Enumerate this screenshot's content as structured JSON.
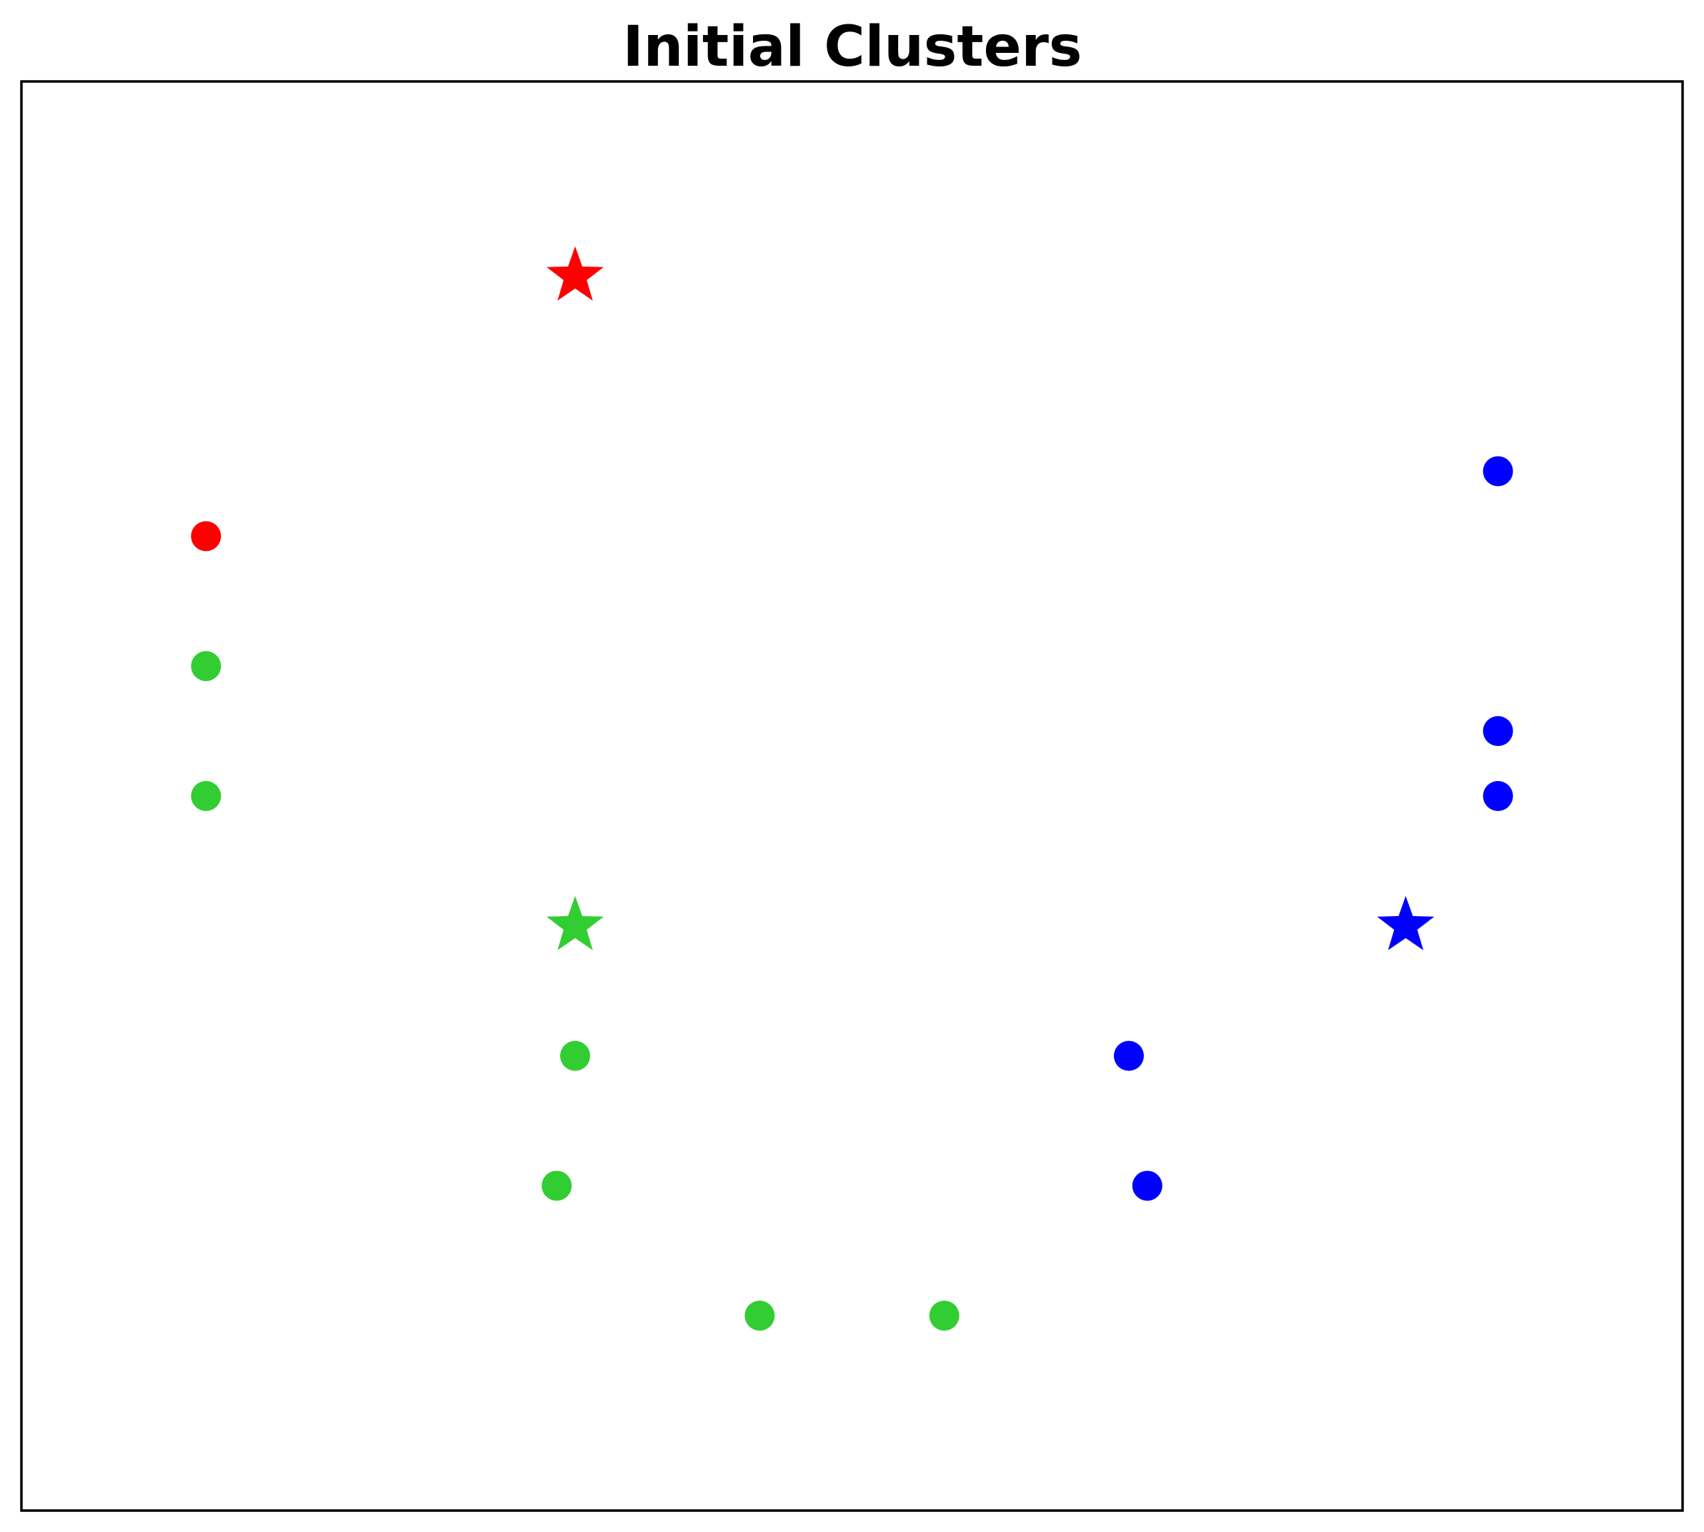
{
  "chart_data": {
    "type": "scatter",
    "title": "Initial Clusters",
    "xlabel": "",
    "ylabel": "",
    "xlim": [
      0,
      9
    ],
    "ylim": [
      -1,
      10
    ],
    "ticks_visible": false,
    "grid": false,
    "legend": "none",
    "series": [
      {
        "cluster": "red",
        "color": "#ff0000",
        "marker": "circle",
        "points": [
          {
            "x": 1.0,
            "y": 6.5
          }
        ]
      },
      {
        "cluster": "green",
        "color": "#32cd32",
        "marker": "circle",
        "points": [
          {
            "x": 1.0,
            "y": 5.5
          },
          {
            "x": 1.0,
            "y": 4.5
          },
          {
            "x": 3.0,
            "y": 2.5
          },
          {
            "x": 2.9,
            "y": 1.5
          },
          {
            "x": 4.0,
            "y": 0.5
          },
          {
            "x": 5.0,
            "y": 0.5
          }
        ]
      },
      {
        "cluster": "blue",
        "color": "#0000ff",
        "marker": "circle",
        "points": [
          {
            "x": 8.0,
            "y": 7.0
          },
          {
            "x": 8.0,
            "y": 5.0
          },
          {
            "x": 8.0,
            "y": 4.5
          },
          {
            "x": 6.0,
            "y": 2.5
          },
          {
            "x": 6.1,
            "y": 1.5
          }
        ]
      }
    ],
    "centroids": [
      {
        "cluster": "red",
        "color": "#ff0000",
        "marker": "star",
        "x": 3.0,
        "y": 8.5
      },
      {
        "cluster": "green",
        "color": "#32cd32",
        "marker": "star",
        "x": 3.0,
        "y": 3.5
      },
      {
        "cluster": "blue",
        "color": "#0000ff",
        "marker": "star",
        "x": 7.5,
        "y": 3.5
      }
    ]
  }
}
